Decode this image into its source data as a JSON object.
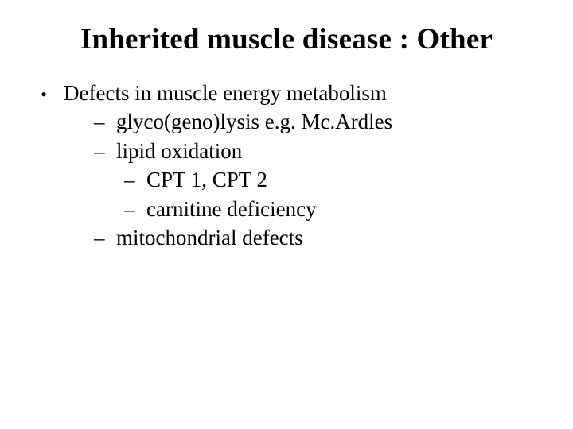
{
  "slide": {
    "title": "Inherited muscle disease :  Other",
    "title_fontsize": 37,
    "body_fontsize": 27,
    "text_color": "#000000",
    "background_color": "#ffffff",
    "font_family": "Times New Roman",
    "bullet_char": "•",
    "dash_char": "–",
    "items": [
      {
        "level": 1,
        "text": "Defects in muscle energy metabolism"
      },
      {
        "level": 2,
        "text": "glyco(geno)lysis e.g. Mc.Ardles"
      },
      {
        "level": 2,
        "text": "lipid oxidation"
      },
      {
        "level": 3,
        "text": "CPT 1, CPT 2"
      },
      {
        "level": 3,
        "text": "carnitine deficiency"
      },
      {
        "level": 2,
        "text": "mitochondrial defects"
      }
    ]
  }
}
